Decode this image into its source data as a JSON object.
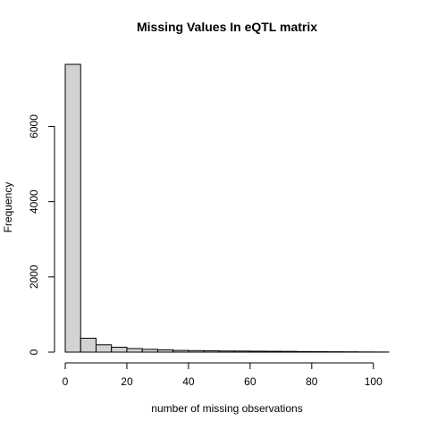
{
  "chart_data": {
    "type": "bar",
    "subtype": "histogram",
    "title": "Missing Values In eQTL matrix",
    "xlabel": "number of missing observations",
    "ylabel": "Frequency",
    "bin_width": 5,
    "bins": [
      {
        "start": 0,
        "end": 5,
        "count": 7650
      },
      {
        "start": 5,
        "end": 10,
        "count": 370
      },
      {
        "start": 10,
        "end": 15,
        "count": 195
      },
      {
        "start": 15,
        "end": 20,
        "count": 130
      },
      {
        "start": 20,
        "end": 25,
        "count": 95
      },
      {
        "start": 25,
        "end": 30,
        "count": 75
      },
      {
        "start": 30,
        "end": 35,
        "count": 60
      },
      {
        "start": 35,
        "end": 40,
        "count": 45
      },
      {
        "start": 40,
        "end": 45,
        "count": 40
      },
      {
        "start": 45,
        "end": 50,
        "count": 35
      },
      {
        "start": 50,
        "end": 55,
        "count": 30
      },
      {
        "start": 55,
        "end": 60,
        "count": 28
      },
      {
        "start": 60,
        "end": 65,
        "count": 25
      },
      {
        "start": 65,
        "end": 70,
        "count": 22
      },
      {
        "start": 70,
        "end": 75,
        "count": 20
      },
      {
        "start": 75,
        "end": 80,
        "count": 15
      },
      {
        "start": 80,
        "end": 85,
        "count": 12
      },
      {
        "start": 85,
        "end": 90,
        "count": 10
      },
      {
        "start": 90,
        "end": 95,
        "count": 8
      },
      {
        "start": 95,
        "end": 100,
        "count": 5
      },
      {
        "start": 100,
        "end": 105,
        "count": 3
      }
    ],
    "x_ticks": [
      0,
      20,
      40,
      60,
      80,
      100
    ],
    "y_ticks": [
      0,
      2000,
      4000,
      6000
    ],
    "xlim": [
      0,
      105
    ],
    "ylim": [
      0,
      7650
    ],
    "grid": false,
    "legend": "none",
    "bar_fill": "#d3d3d3",
    "bar_stroke": "#000000"
  }
}
